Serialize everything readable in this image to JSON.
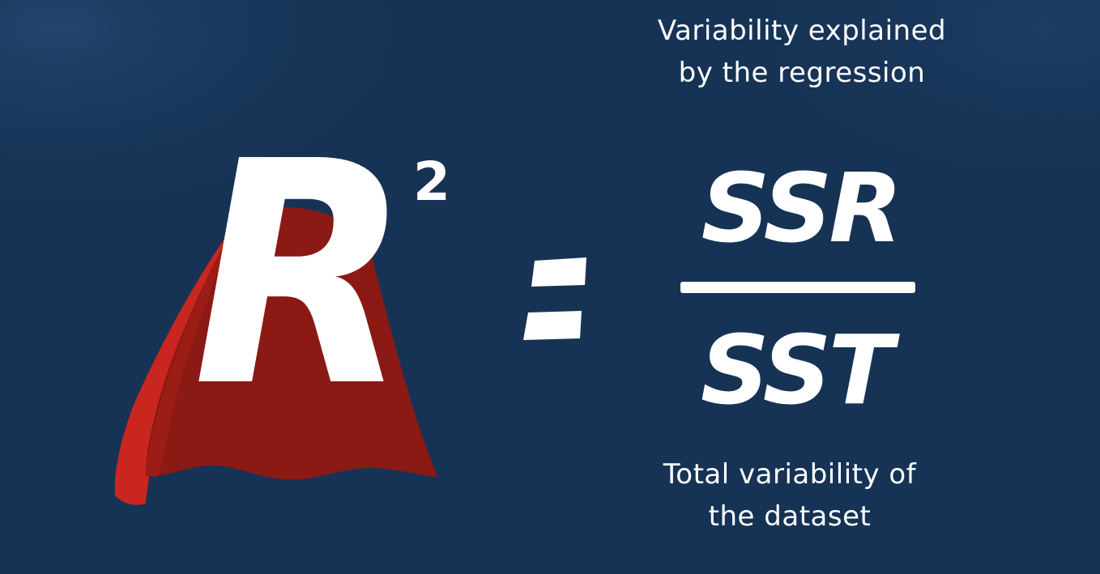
{
  "formula": {
    "lhs_symbol": "R",
    "lhs_exponent": "2",
    "numerator": "SSR",
    "denominator": "SST"
  },
  "annotations": {
    "numerator_line1": "Variability explained",
    "numerator_line2": "by the regression",
    "denominator_line1": "Total variability of",
    "denominator_line2": "the dataset"
  },
  "colors": {
    "background": "#163355",
    "cape_dark": "#8b1a14",
    "cape_light": "#c8261e",
    "text": "#ffffff"
  },
  "icons": {
    "cape": "superhero-cape-icon"
  }
}
